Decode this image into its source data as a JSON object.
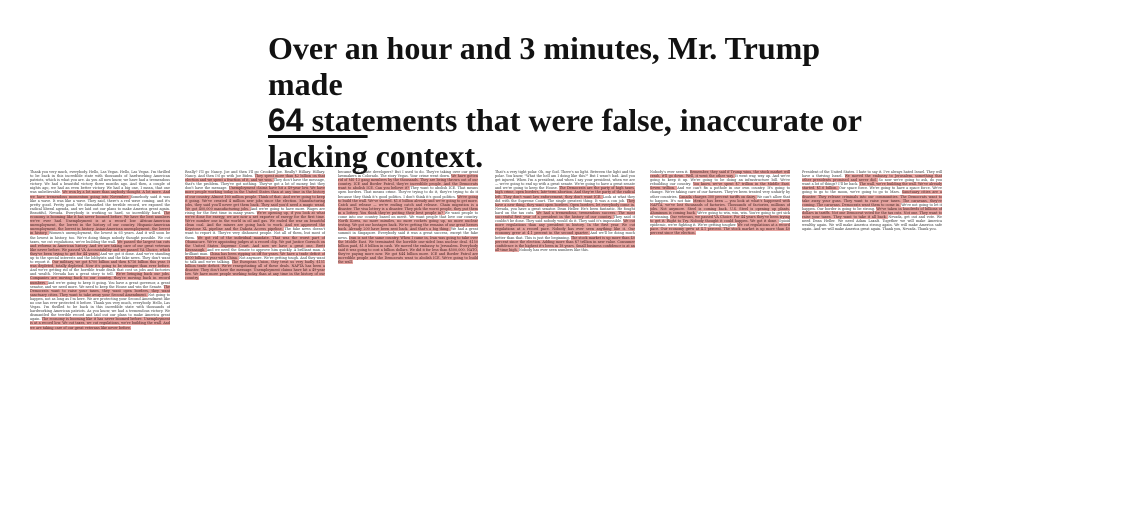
{
  "headline": {
    "line1": "Over an hour and 3 minutes, Mr. Trump made",
    "count": "64",
    "line2_rest": " statements that were false, inaccurate or",
    "line3_first": "lacking",
    "line3_rest": " context."
  },
  "colors": {
    "highlight": "#e8a6a2",
    "text": "#333333"
  },
  "transcript": {
    "columns": [
      {
        "segments": [
          {
            "text": "Thank you very much, everybody. Hello, Las Vegas. Hello, Las Vegas. I'm thrilled to be back in this incredible state with thousands of hardworking American patriots, which is what you are. As you all now know, we have had a tremendous victory. We had a beautiful victory three months ago. And then, a couple of nights ago, we had an even better victory. We had a big one, I mean, that one was unbelievable. ",
            "hl": false
          },
          {
            "text": "We won by a lot more than anybody thought. A lot more. And we have tremendous momentum going into November. ",
            "hl": true
          },
          {
            "text": "Somebody said it was like a wave. It was like a wave. They said, there's a red wave coming, and it's pretty good. Pretty good. We dismantled the terrible record, we exposed the radical liberal agenda, and we laid out our plans to make America great again. Beautiful, Nevada. Everybody is working so hard, so incredibly hard. ",
            "hl": false
          },
          {
            "text": "The economy is booming like it has never boomed before. We have the best numbers we've ever had. ",
            "hl": true
          },
          {
            "text": "Unemployment is at a record low. African-American unemployment, the lowest in the history of our country. Hispanic-American unemployment, the lowest in history. Asian-American unemployment, the lowest in history. ",
            "hl": true
          },
          {
            "text": "Women's unemployment, the lowest in 65 years. And it will soon be the lowest in history, too. We're doing things nobody thought possible. We cut taxes, we cut regulations, we're building the wall. ",
            "hl": false
          },
          {
            "text": "We passed the largest tax cuts and reforms in American history. ",
            "hl": true
          },
          {
            "text": "And we are taking care of our great veterans like never before. We passed VA Accountability and we passed VA Choice, which they've been trying to get for 44 years. ",
            "hl": true
          },
          {
            "text": "And we got it done. And we're standing up to the special interests and the lobbyists and the fake news. They don't want to report it. ",
            "hl": false
          },
          {
            "text": "Our military, we got $700 billion and then $716 billion this year. It was depleted, totally depleted. Now it's going to be stronger than ever before. ",
            "hl": true
          },
          {
            "text": "And we're getting rid of the horrible trade deals that cost us jobs and factories and wealth. Nevada has a great story to tell. ",
            "hl": false
          },
          {
            "text": "We're bringing back our jobs. Companies are moving back to our country, they're moving back in record numbers. ",
            "hl": true
          },
          {
            "text": "And we're going to keep it going. You have a great governor, a great senator, and we need more. We need to keep the House and win the Senate. ",
            "hl": false
          },
          {
            "text": "The Democrats want to raise your taxes, they want open borders, they want sanctuary cities. They want to take away your Second Amendment. ",
            "hl": true
          },
          {
            "text": "Not going to happen, not as long as I'm here. We are protecting your Second Amendment like no one has ever protected it before. ",
            "hl": false
          },
          {
            "text": "Thank you very much, everybody. Hello, Las Vegas. I'm thrilled to be back in this incredible state with thousands of hardworking American patriots. As you know, we had a tremendous victory. We dismantled the terrible record and laid out our plans to make America great again. ",
            "hl": false
          },
          {
            "text": "The economy is booming like it has never boomed before. Unemployment is at a record low. ",
            "hl": true
          },
          {
            "text": "We cut taxes, we cut regulations, we're building the wall. And we are taking care of our great veterans like never before. ",
            "hl": true
          }
        ]
      },
      {
        "segments": [
          {
            "text": "Really? I'll go Nancy. Joe and then I'll go Crooked Joe. Really? Hillary. Hillary. Nancy. And then I'd go with Joe Biden. ",
            "hl": false
          },
          {
            "text": "They spent more than $2 billion on that election and we spent a fraction of it, and we won. ",
            "hl": true
          },
          {
            "text": "They don't have the message, that's the problem. They've got nothing. They've got a lot of money, but they don't have the message. ",
            "hl": false
          },
          {
            "text": "Unemployment claims have hit a 49-year low. ",
            "hl": true
          },
          {
            "text": "We have more people working today in the United States than at any time in the history of our country. Almost 160 million people. ",
            "hl": true
          },
          {
            "text": "Think of that. And we're going to keep it going. We've created 4 million new jobs since the election. ",
            "hl": true
          },
          {
            "text": "Manufacturing jobs, they said you'll never get them back. They said you'd need a magic wand. We got 400,000 manufacturing jobs. ",
            "hl": true
          },
          {
            "text": "And we're going to have more. Wages are rising for the first time in many years. ",
            "hl": false
          },
          {
            "text": "We're opening up, if you look at what we've done for energy, we are now a net exporter of energy for the first time. ",
            "hl": true
          },
          {
            "text": "We're number one in the world in oil and gas. We ended the war on beautiful clean coal. ",
            "hl": true
          },
          {
            "text": "And the miners are going back to work. And we approved the Keystone XL pipeline and the Dakota Access pipeline. ",
            "hl": true
          },
          {
            "text": "The fake news doesn't want to report it. They're very dishonest people. Not all of them, but most of them. ",
            "hl": false
          },
          {
            "text": "We got rid of the individual mandate. That was the worst part of Obamacare. ",
            "hl": true
          },
          {
            "text": "We're appointing judges at a record clip. We put Justice Gorsuch on the United States Supreme Court. And now we have a great one, Brett Kavanaugh. ",
            "hl": true
          },
          {
            "text": "And we need the Senate to approve him quickly. A brilliant man. A brilliant man. ",
            "hl": false
          },
          {
            "text": "China has been ripping us off for years. We have a trade deficit of $500 billion a year with China. ",
            "hl": true
          },
          {
            "text": "Not anymore. We're getting tough. And they want to talk and we're talking. ",
            "hl": false
          },
          {
            "text": "The European Union, they treat us very badly. $151 billion trade deficit. ",
            "hl": true
          },
          {
            "text": "We're renegotiating all of these deals. NAFTA has been a disaster. ",
            "hl": true
          },
          {
            "text": "They don't have the message. Unemployment claims have hit a 49-year low. We have more people working today than at any time in the history of our country. ",
            "hl": true
          }
        ]
      },
      {
        "segments": [
          {
            "text": "became real estate developers? But I used to do. They're taking over our great lawmakers in Colorado. The story Vegas. Your crime went down. ",
            "hl": false
          },
          {
            "text": "We have gotten rid of MS-13 gang members by the thousands. They are being thrown out of our country. ",
            "hl": true
          },
          {
            "text": "ICE and Border Patrol, they're incredible people. And the Democrats want to abolish ICE. Can you believe it? ",
            "hl": true
          },
          {
            "text": "They want to abolish ICE. That means open borders. That means crime. ",
            "hl": false
          },
          {
            "text": "They're trying to do it, they're trying to do it because they think it's good politics. I don't think it's good politics. ",
            "hl": false
          },
          {
            "text": "We're going to build the wall. We've started. $1.6 billion already and we're going to get more. ",
            "hl": true
          },
          {
            "text": "Catch and release — we're ending catch and release. Chain migration is a disaster. The visa lottery is a disaster. ",
            "hl": true
          },
          {
            "text": "They pick the worst people, they put them in a lottery. You think they're putting their best people in? ",
            "hl": true
          },
          {
            "text": "We want people to come into our country based on merit. We want people that love our country. ",
            "hl": false
          },
          {
            "text": "North Korea, no more missiles, no more rockets going up, no more nuclear testing. ",
            "hl": true
          },
          {
            "text": "We got our hostages back. We're getting the remains of our great heroes back. ",
            "hl": true
          },
          {
            "text": "Already 200 have been sent back. And that's a big thing. ",
            "hl": true
          },
          {
            "text": "We had a great summit in Singapore. Everybody said it was a great success, except the fake news. ",
            "hl": false
          },
          {
            "text": "Iran is not the same country. When I came in, Iran was going to take over the Middle East. ",
            "hl": true
          },
          {
            "text": "We terminated the horrible one-sided Iran nuclear deal. $150 billion paid, $1.8 billion in cash. ",
            "hl": true
          },
          {
            "text": "We moved the embassy to Jerusalem. Everybody said it was going to cost a billion dollars. We did it for less than $500,000. ",
            "hl": true
          },
          {
            "text": "NATO, they're paying more now. We got $44 billion more. ",
            "hl": true
          },
          {
            "text": "ICE and Border Patrol are incredible people and the Democrats want to abolish ICE. We're going to build the wall. ",
            "hl": true
          }
        ]
      },
      {
        "segments": [
          {
            "text": "That's a very tight polar. Oh, my God. There's no light. Between the light and the polar. You know, \"What the hell am I doing like this?\" But I wasn't bad. And you get injured. When I'm a president, and when I say your president, when we are — we're going to end up with a great senate. ",
            "hl": false
          },
          {
            "text": "We're going to have a great senate and we're going to keep the House. ",
            "hl": false
          },
          {
            "text": "The Democrats are the party of high taxes, high crime, open borders, late-term abortion. ",
            "hl": true
          },
          {
            "text": "And they're the party of the radical left. They don't want law enforcement, they don't want ICE. ",
            "hl": true
          },
          {
            "text": "Look at what they did with the Supreme Court. The single greatest thing. It was a con job. ",
            "hl": false
          },
          {
            "text": "They have a new thing, they want open borders. Open borders, let everybody come in. ",
            "hl": true
          },
          {
            "text": "Nevada, you have a great senator. Dean Heller. He's been fantastic. He fought hard on the tax cuts. ",
            "hl": false
          },
          {
            "text": "We had a tremendous, tremendous success. The most successful first year of a president in the history of our country. ",
            "hl": true
          },
          {
            "text": "They said it couldn't be done. They said nobody would do it. They said it's impossible. ",
            "hl": false
          },
          {
            "text": "We cut more regulations than any president in history. In the first year. ",
            "hl": true
          },
          {
            "text": "We cut regulations at a record pace. Nobody has ever seen anything like it. ",
            "hl": true
          },
          {
            "text": "Our economy grew at 4.1 percent in the second quarter. ",
            "hl": true
          },
          {
            "text": "And we'll be doing much better than that. This is just the beginning. ",
            "hl": false
          },
          {
            "text": "The stock market is up more than 40 percent since the election. ",
            "hl": true
          },
          {
            "text": "Adding more than $7 trillion in new value. ",
            "hl": true
          },
          {
            "text": "Consumer confidence is the highest it's been in 18 years. Small business confidence is at an all-time high. ",
            "hl": true
          },
          {
            "text": "Nobody has ever seen numbers like this. ",
            "hl": false
          }
        ]
      },
      {
        "segments": [
          {
            "text": "Nobody's ever seen it. ",
            "hl": false
          },
          {
            "text": "Remember, they said if Trump wins, the stock market will crash, it'll go down. Well, it went the other way. ",
            "hl": true
          },
          {
            "text": "It went way, way up. And we're going to keep it up. ",
            "hl": false
          },
          {
            "text": "We're going to be doing an infrastructure bill. We're rebuilding our country. ",
            "hl": false
          },
          {
            "text": "You know, we've spent $7 trillion in the Middle East. Seven trillion. ",
            "hl": true
          },
          {
            "text": "And we can't fix a pothole in our own country. It's going to change. ",
            "hl": false
          },
          {
            "text": "We're taking care of our farmers. They've been treated very unfairly by other countries. ",
            "hl": false
          },
          {
            "text": "Canada charges 300 percent tariffs on dairy. ",
            "hl": true
          },
          {
            "text": "We can't allow that to happen. It's not fair. ",
            "hl": false
          },
          {
            "text": "Mexico has been — you look at what's happened with NAFTA, we've lost thousands of factories. ",
            "hl": true
          },
          {
            "text": "Thousands of factories, millions of jobs. Not anymore. ",
            "hl": true
          },
          {
            "text": "Steel is coming back. U.S. Steel is opening up plants. ",
            "hl": true
          },
          {
            "text": "Aluminum is coming back. ",
            "hl": true
          },
          {
            "text": "We're going to win, win, win. You're going to get sick of winning. ",
            "hl": false
          },
          {
            "text": "Our veterans, we passed VA Choice. For 44 years they've been trying to get it. ",
            "hl": true
          },
          {
            "text": "Right to Try. Nobody thought it could happen. We got it done. ",
            "hl": true
          },
          {
            "text": "Opioid epidemic, we're fighting it. We're getting tougher. ",
            "hl": false
          },
          {
            "text": "We cut regulations at a record pace. Our economy grew at 4.1 percent. The stock market is up more than 40 percent since the election. ",
            "hl": true
          }
        ]
      },
      {
        "segments": [
          {
            "text": "President of the United States. I hate to say it. I've always hated Israel. They will have a thriving Israel. ",
            "hl": false
          },
          {
            "text": "We moved the embassy to Jerusalem, something that other presidents promised and never did. ",
            "hl": true
          },
          {
            "text": "So now we're going to ask, do you want a lot of things? I'll be back. ",
            "hl": false
          },
          {
            "text": "The wall, we're building the wall. We've already started. $1.6 billion. ",
            "hl": true
          },
          {
            "text": "Our space force. We're going to have a space force. ",
            "hl": false
          },
          {
            "text": "We're going to go to the moon, we're going to go to Mars. ",
            "hl": false
          },
          {
            "text": "Sanctuary cities are a disaster. They release criminals into our communities. ",
            "hl": true
          },
          {
            "text": "The Democrats want to take away your guns. They want to raise your taxes. ",
            "hl": true
          },
          {
            "text": "The caravans, they're coming. The caravans. Democrats want them to come in. ",
            "hl": true
          },
          {
            "text": "We're not going to let it happen. Our border is going to be strong. ",
            "hl": false
          },
          {
            "text": "We've taken in hundreds of billions of dollars in tariffs. ",
            "hl": true
          },
          {
            "text": "Not one Democrat voted for the tax cuts. Not one. ",
            "hl": true
          },
          {
            "text": "They want to raise your taxes. They want to take it all back. ",
            "hl": true
          },
          {
            "text": "Nevada, get out and vote. We need Dean Heller. We need Adam Laxalt. ",
            "hl": false
          },
          {
            "text": "Together we will make America wealthy again. We will make America strong again. We will make America safe again. And we will make America great again. Thank you, Nevada. Thank you. ",
            "hl": false
          }
        ]
      }
    ]
  }
}
